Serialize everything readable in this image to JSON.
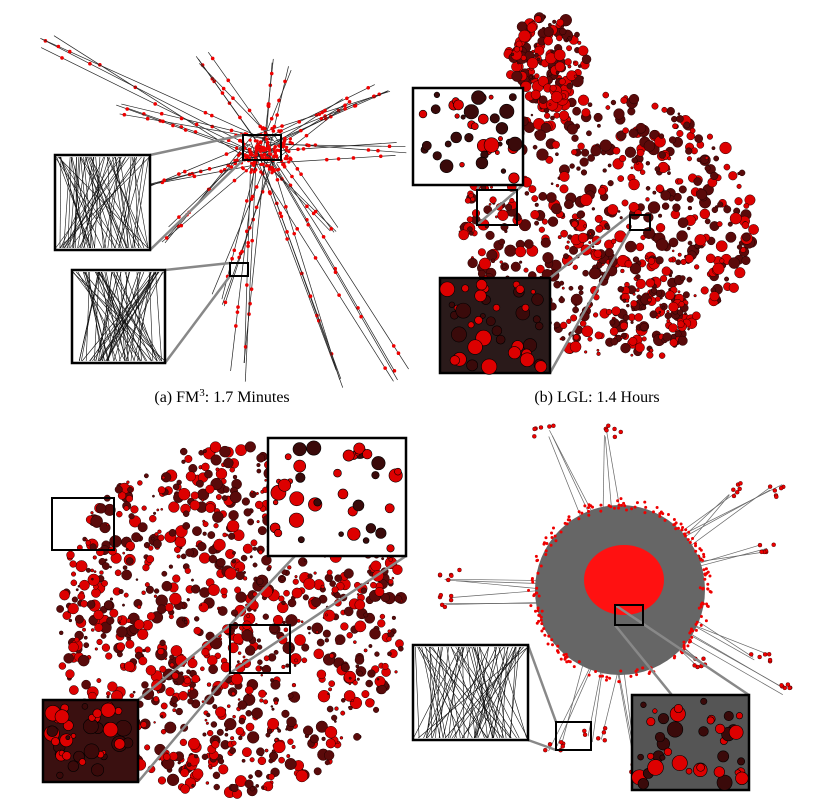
{
  "panels": [
    {
      "caption_prefix": "(a)  FM",
      "superscript": "3",
      "caption_suffix": ": 1.7 Minutes"
    },
    {
      "caption": "(b)  LGL: 1.4 Hours"
    }
  ]
}
